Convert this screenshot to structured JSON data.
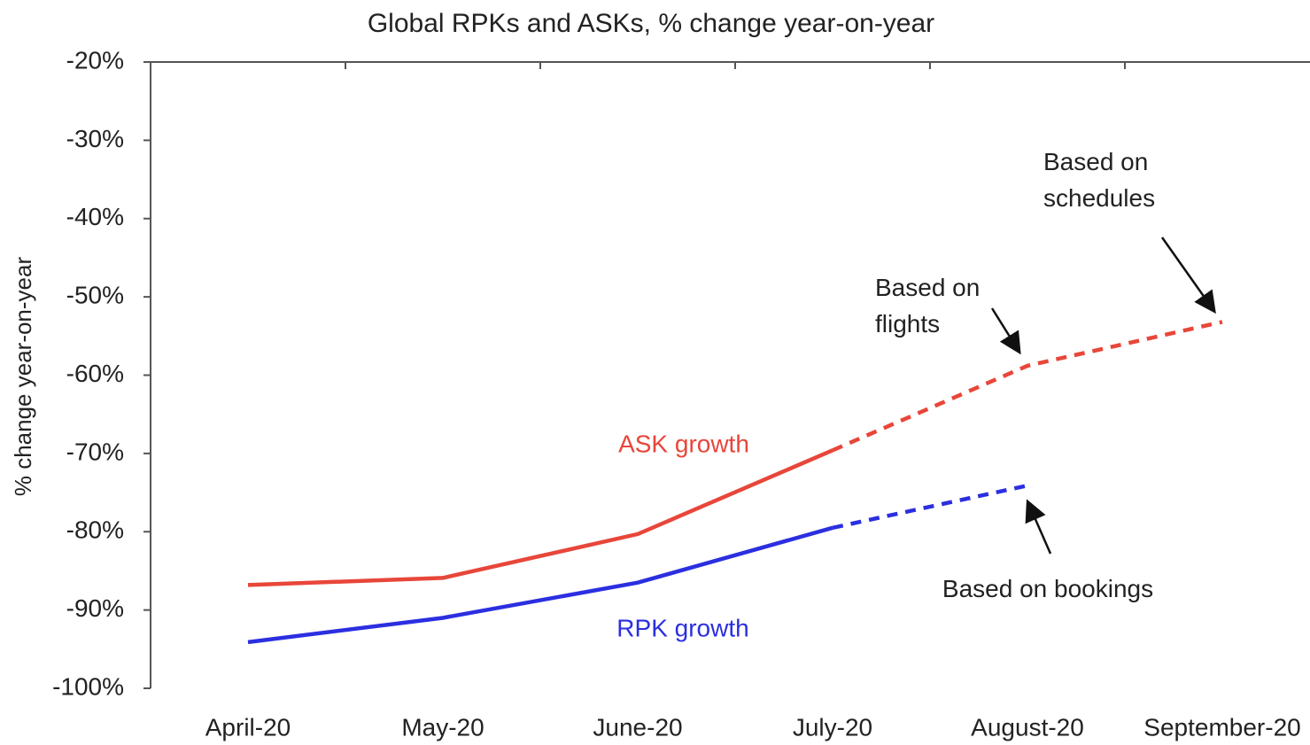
{
  "chart_data": {
    "type": "line",
    "title": "Global RPKs and ASKs, % change year-on-year",
    "y_label": "% change year-on-year",
    "categories": [
      "April-20",
      "May-20",
      "June-20",
      "July-20",
      "August-20",
      "September-20"
    ],
    "series": [
      {
        "name": "ASK growth",
        "color": "#e8463a",
        "dashed_from": 3,
        "values": [
          -86.8,
          -85.9,
          -80.3,
          -69.6,
          -58.8,
          -53.2
        ]
      },
      {
        "name": "RPK growth",
        "color": "#2b2fe0",
        "dashed_from": 3,
        "values": [
          -94.1,
          -91.0,
          -86.5,
          -79.5,
          -74.1,
          null
        ]
      }
    ],
    "ylim": [
      -100,
      -20
    ],
    "yticks": [
      {
        "value": -20,
        "label": "-20%"
      },
      {
        "value": -30,
        "label": "-30%"
      },
      {
        "value": -40,
        "label": "-40%"
      },
      {
        "value": -50,
        "label": "-50%"
      },
      {
        "value": -60,
        "label": "-60%"
      },
      {
        "value": -70,
        "label": "-70%"
      },
      {
        "value": -80,
        "label": "-80%"
      },
      {
        "value": -90,
        "label": "-90%"
      },
      {
        "value": -100,
        "label": "-100%"
      }
    ],
    "annotations": [
      {
        "lines": [
          "Based on",
          "schedules"
        ]
      },
      {
        "lines": [
          "Based on",
          "flights"
        ]
      },
      {
        "lines": [
          "Based on bookings"
        ]
      }
    ]
  }
}
